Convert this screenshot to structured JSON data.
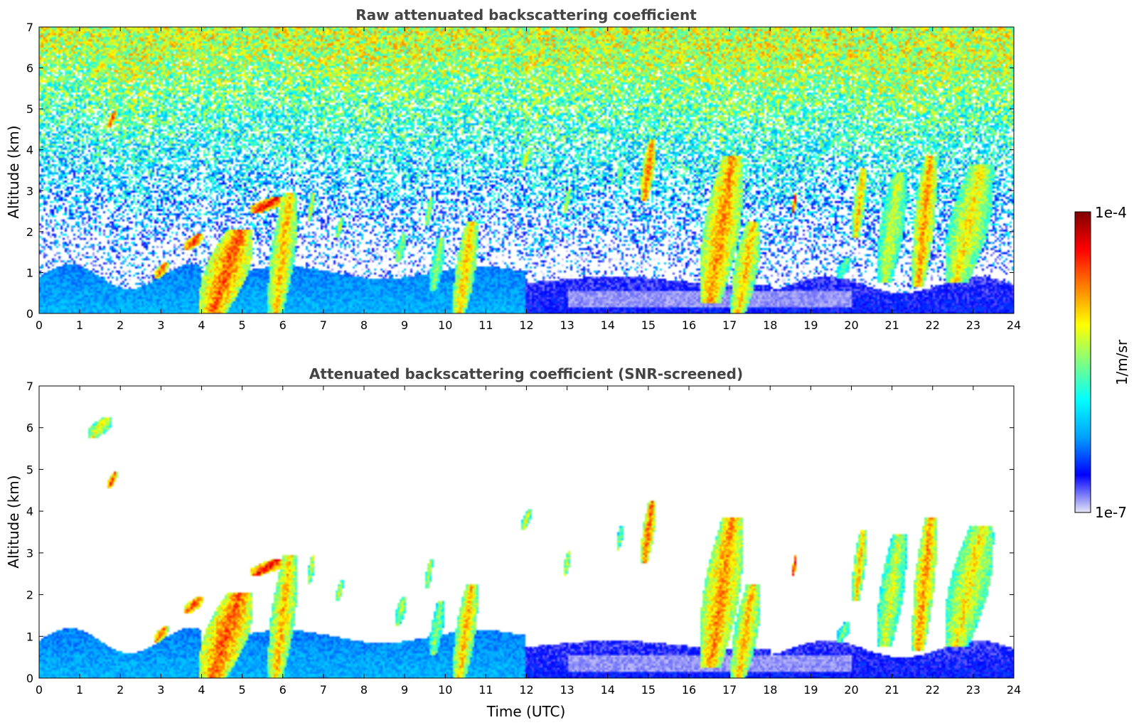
{
  "chart_data": [
    {
      "type": "heatmap",
      "title": "Raw attenuated backscattering coefficient",
      "xlabel": "",
      "ylabel": "Altitude (km)",
      "xlim": [
        0,
        24
      ],
      "ylim": [
        0,
        7
      ],
      "x_ticks": [
        0,
        1,
        2,
        3,
        4,
        5,
        6,
        7,
        8,
        9,
        10,
        11,
        12,
        13,
        14,
        15,
        16,
        17,
        18,
        19,
        20,
        21,
        22,
        23,
        24
      ],
      "y_ticks": [
        0,
        1,
        2,
        3,
        4,
        5,
        6,
        7
      ],
      "screened": false,
      "grid": false
    },
    {
      "type": "heatmap",
      "title": "Attenuated backscattering coefficient (SNR-screened)",
      "xlabel": "Time (UTC)",
      "ylabel": "Altitude (km)",
      "xlim": [
        0,
        24
      ],
      "ylim": [
        0,
        7
      ],
      "x_ticks": [
        0,
        1,
        2,
        3,
        4,
        5,
        6,
        7,
        8,
        9,
        10,
        11,
        12,
        13,
        14,
        15,
        16,
        17,
        18,
        19,
        20,
        21,
        22,
        23,
        24
      ],
      "y_ticks": [
        0,
        1,
        2,
        3,
        4,
        5,
        6,
        7
      ],
      "screened": true,
      "grid": false
    }
  ],
  "colorbar": {
    "label": "1/m/sr",
    "max_label": "1e-4",
    "min_label": "1e-7",
    "scale": "log",
    "colormap": "jet",
    "colors": [
      "#e6e6f5",
      "#0000ff",
      "#00a0ff",
      "#00ffff",
      "#80ff80",
      "#ffff00",
      "#ff8000",
      "#ff0000",
      "#800000"
    ]
  },
  "features": {
    "cloud_plumes": [
      {
        "t": 4.6,
        "bottom": 0.0,
        "top": 2.0,
        "w": 1.1,
        "v": 0.8
      },
      {
        "t": 6.0,
        "bottom": 0.0,
        "top": 2.9,
        "w": 0.6,
        "v": 0.7
      },
      {
        "t": 5.6,
        "bottom": 2.5,
        "top": 2.8,
        "w": 0.7,
        "v": 0.9
      },
      {
        "t": 10.5,
        "bottom": 0.0,
        "top": 2.2,
        "w": 0.5,
        "v": 0.7
      },
      {
        "t": 9.8,
        "bottom": 0.6,
        "top": 1.8,
        "w": 0.3,
        "v": 0.55
      },
      {
        "t": 16.8,
        "bottom": 0.3,
        "top": 3.8,
        "w": 0.9,
        "v": 0.75
      },
      {
        "t": 17.4,
        "bottom": 0.0,
        "top": 2.2,
        "w": 0.6,
        "v": 0.7
      },
      {
        "t": 15.0,
        "bottom": 2.8,
        "top": 4.2,
        "w": 0.3,
        "v": 0.8
      },
      {
        "t": 20.2,
        "bottom": 1.9,
        "top": 3.5,
        "w": 0.3,
        "v": 0.7
      },
      {
        "t": 21.0,
        "bottom": 0.8,
        "top": 3.4,
        "w": 0.6,
        "v": 0.6
      },
      {
        "t": 21.8,
        "bottom": 0.7,
        "top": 3.8,
        "w": 0.5,
        "v": 0.75
      },
      {
        "t": 22.9,
        "bottom": 0.8,
        "top": 3.6,
        "w": 1.0,
        "v": 0.65
      },
      {
        "t": 13.0,
        "bottom": 2.5,
        "top": 3.0,
        "w": 0.15,
        "v": 0.6
      },
      {
        "t": 14.3,
        "bottom": 3.1,
        "top": 3.6,
        "w": 0.15,
        "v": 0.55
      },
      {
        "t": 12.0,
        "bottom": 3.6,
        "top": 4.0,
        "w": 0.2,
        "v": 0.6
      },
      {
        "t": 6.7,
        "bottom": 2.3,
        "top": 2.9,
        "w": 0.15,
        "v": 0.6
      },
      {
        "t": 7.4,
        "bottom": 1.9,
        "top": 2.3,
        "w": 0.15,
        "v": 0.6
      },
      {
        "t": 8.9,
        "bottom": 1.3,
        "top": 1.9,
        "w": 0.25,
        "v": 0.55
      },
      {
        "t": 9.6,
        "bottom": 2.2,
        "top": 2.8,
        "w": 0.15,
        "v": 0.6
      },
      {
        "t": 18.6,
        "bottom": 2.5,
        "top": 2.9,
        "w": 0.1,
        "v": 0.9
      },
      {
        "t": 19.8,
        "bottom": 0.9,
        "top": 1.3,
        "w": 0.3,
        "v": 0.5
      },
      {
        "t": 1.8,
        "bottom": 4.6,
        "top": 4.9,
        "w": 0.2,
        "v": 0.85
      },
      {
        "t": 1.5,
        "bottom": 5.8,
        "top": 6.2,
        "w": 0.5,
        "v": 0.65
      },
      {
        "t": 3.0,
        "bottom": 0.9,
        "top": 1.2,
        "w": 0.3,
        "v": 0.8
      },
      {
        "t": 3.8,
        "bottom": 1.6,
        "top": 1.9,
        "w": 0.4,
        "v": 0.85
      }
    ]
  }
}
